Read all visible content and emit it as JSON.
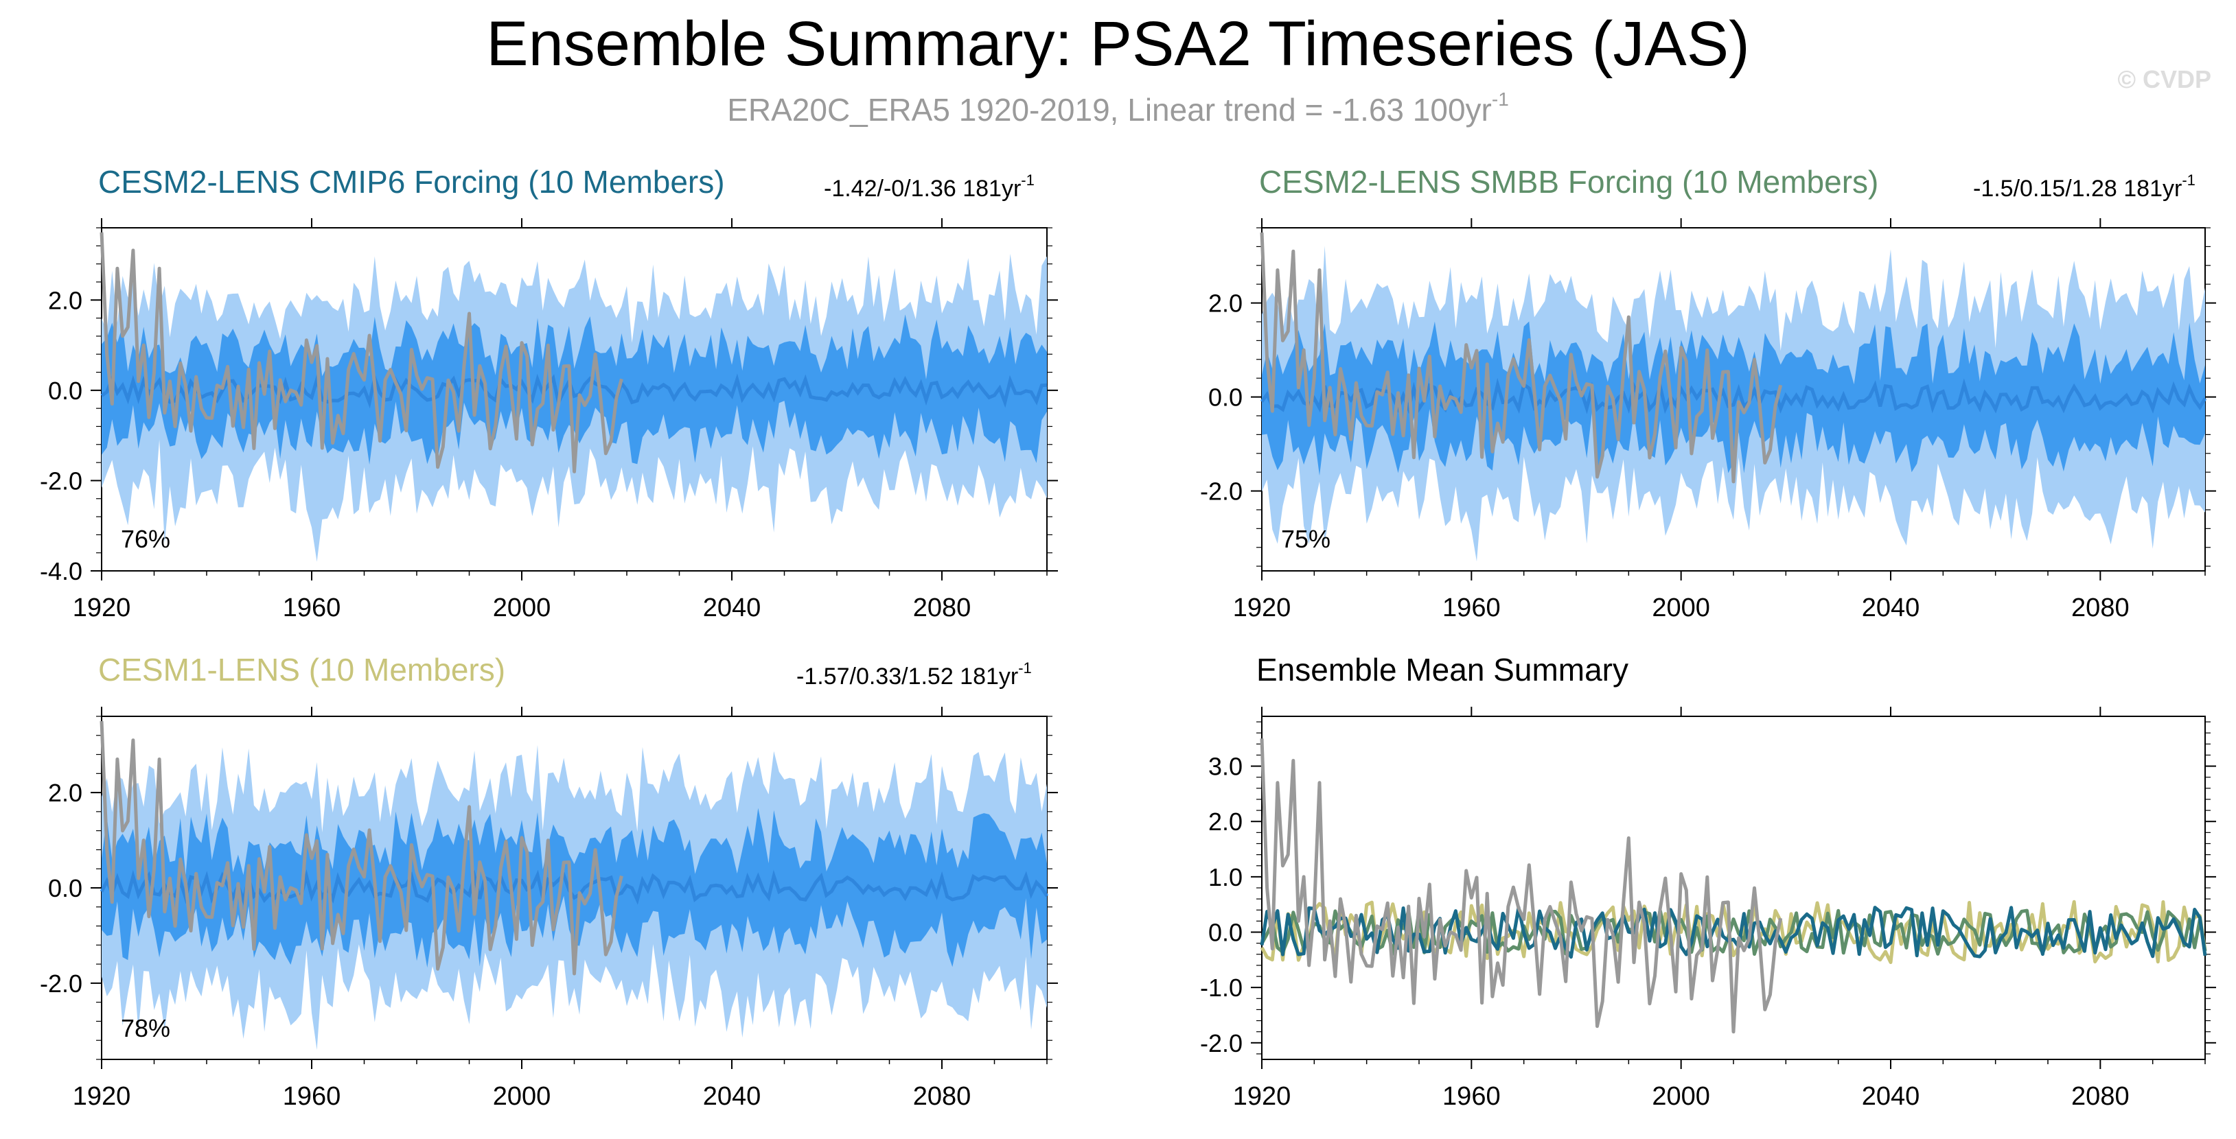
{
  "title": "Ensemble Summary: PSA2 Timeseries (JAS)",
  "subtitle": {
    "text": "ERA20C_ERA5 1920-2019, Linear trend = -1.63 100yr",
    "sup": "-1"
  },
  "watermark": "© CVDP",
  "colors": {
    "observed": "#999999",
    "cmip6": "#1a6b8a",
    "smbb": "#5f8f6a",
    "cesm1": "#c8c47a",
    "band_outer": "#a6cff7",
    "band_inner": "#3f9bef",
    "ens_mean": "#2f86dd"
  },
  "panels": {
    "cmip6": {
      "title": "CESM2-LENS CMIP6 Forcing (10 Members)",
      "trend": "-1.42/-0/1.36 181yr",
      "trend_sup": "-1",
      "percent": "76%"
    },
    "smbb": {
      "title": "CESM2-LENS SMBB Forcing (10 Members)",
      "trend": "-1.5/0.15/1.28 181yr",
      "trend_sup": "-1",
      "percent": "75%"
    },
    "cesm1": {
      "title": "CESM1-LENS (10 Members)",
      "trend": "-1.57/0.33/1.52 181yr",
      "trend_sup": "-1",
      "percent": "78%"
    },
    "summary": {
      "title": "Ensemble Mean Summary"
    }
  },
  "chart_data": [
    {
      "type": "area",
      "panel": "cmip6",
      "title": "CESM2-LENS CMIP6 Forcing (10 Members)",
      "x_range": [
        1920,
        2100
      ],
      "xlim": [
        1920,
        2100
      ],
      "ylim": [
        -4.0,
        3.6
      ],
      "xticks": [
        1920,
        1960,
        2000,
        2040,
        2080
      ],
      "yticks": [
        -4.0,
        -2.0,
        0.0,
        2.0
      ],
      "ytick_labels": [
        "-4.0",
        "-2.0",
        "0.0",
        "2.0"
      ],
      "series": [
        {
          "name": "Ensemble range (min–max)",
          "kind": "band"
        },
        {
          "name": "Ensemble 10th–90th percentile",
          "kind": "band"
        },
        {
          "name": "Ensemble mean",
          "kind": "line"
        },
        {
          "name": "ERA20C_ERA5 observed",
          "kind": "line",
          "x_range": [
            1920,
            2019
          ]
        }
      ],
      "annotations": [
        "-1.42/-0/1.36 181yr-1",
        "76%"
      ]
    },
    {
      "type": "area",
      "panel": "smbb",
      "title": "CESM2-LENS SMBB Forcing (10 Members)",
      "x_range": [
        1920,
        2100
      ],
      "xlim": [
        1920,
        2100
      ],
      "ylim": [
        -3.7,
        3.6
      ],
      "xticks": [
        1920,
        1960,
        2000,
        2040,
        2080
      ],
      "yticks": [
        -2.0,
        0.0,
        2.0
      ],
      "ytick_labels": [
        "-2.0",
        "0.0",
        "2.0"
      ],
      "series": [
        {
          "name": "Ensemble range (min–max)",
          "kind": "band"
        },
        {
          "name": "Ensemble 10th–90th percentile",
          "kind": "band"
        },
        {
          "name": "Ensemble mean",
          "kind": "line"
        },
        {
          "name": "ERA20C_ERA5 observed",
          "kind": "line",
          "x_range": [
            1920,
            2019
          ]
        }
      ],
      "annotations": [
        "-1.5/0.15/1.28 181yr-1",
        "75%"
      ]
    },
    {
      "type": "area",
      "panel": "cesm1",
      "title": "CESM1-LENS (10 Members)",
      "x_range": [
        1920,
        2100
      ],
      "xlim": [
        1920,
        2100
      ],
      "ylim": [
        -3.6,
        3.6
      ],
      "xticks": [
        1920,
        1960,
        2000,
        2040,
        2080
      ],
      "yticks": [
        -2.0,
        0.0,
        2.0
      ],
      "ytick_labels": [
        "-2.0",
        "0.0",
        "2.0"
      ],
      "series": [
        {
          "name": "Ensemble range (min–max)",
          "kind": "band"
        },
        {
          "name": "Ensemble 10th–90th percentile",
          "kind": "band"
        },
        {
          "name": "Ensemble mean",
          "kind": "line"
        },
        {
          "name": "ERA20C_ERA5 observed",
          "kind": "line",
          "x_range": [
            1920,
            2019
          ]
        }
      ],
      "annotations": [
        "-1.57/0.33/1.52 181yr-1",
        "78%"
      ]
    },
    {
      "type": "line",
      "panel": "summary",
      "title": "Ensemble Mean Summary",
      "xlim": [
        1920,
        2100
      ],
      "ylim": [
        -2.3,
        3.9
      ],
      "xticks": [
        1920,
        1960,
        2000,
        2040,
        2080
      ],
      "yticks": [
        -2.0,
        -1.0,
        0.0,
        1.0,
        2.0,
        3.0
      ],
      "ytick_labels": [
        "-2.0",
        "-1.0",
        "0.0",
        "1.0",
        "2.0",
        "3.0"
      ],
      "series": [
        {
          "name": "ERA20C_ERA5 observed",
          "color": "#999999",
          "x_range": [
            1920,
            2019
          ]
        },
        {
          "name": "CESM2-LENS CMIP6 Forcing ensemble mean",
          "color": "#1a6b8a",
          "x_range": [
            1920,
            2100
          ]
        },
        {
          "name": "CESM2-LENS SMBB Forcing ensemble mean",
          "color": "#5f8f6a",
          "x_range": [
            1920,
            2100
          ]
        },
        {
          "name": "CESM1-LENS ensemble mean",
          "color": "#c8c47a",
          "x_range": [
            1920,
            2100
          ]
        }
      ]
    }
  ]
}
